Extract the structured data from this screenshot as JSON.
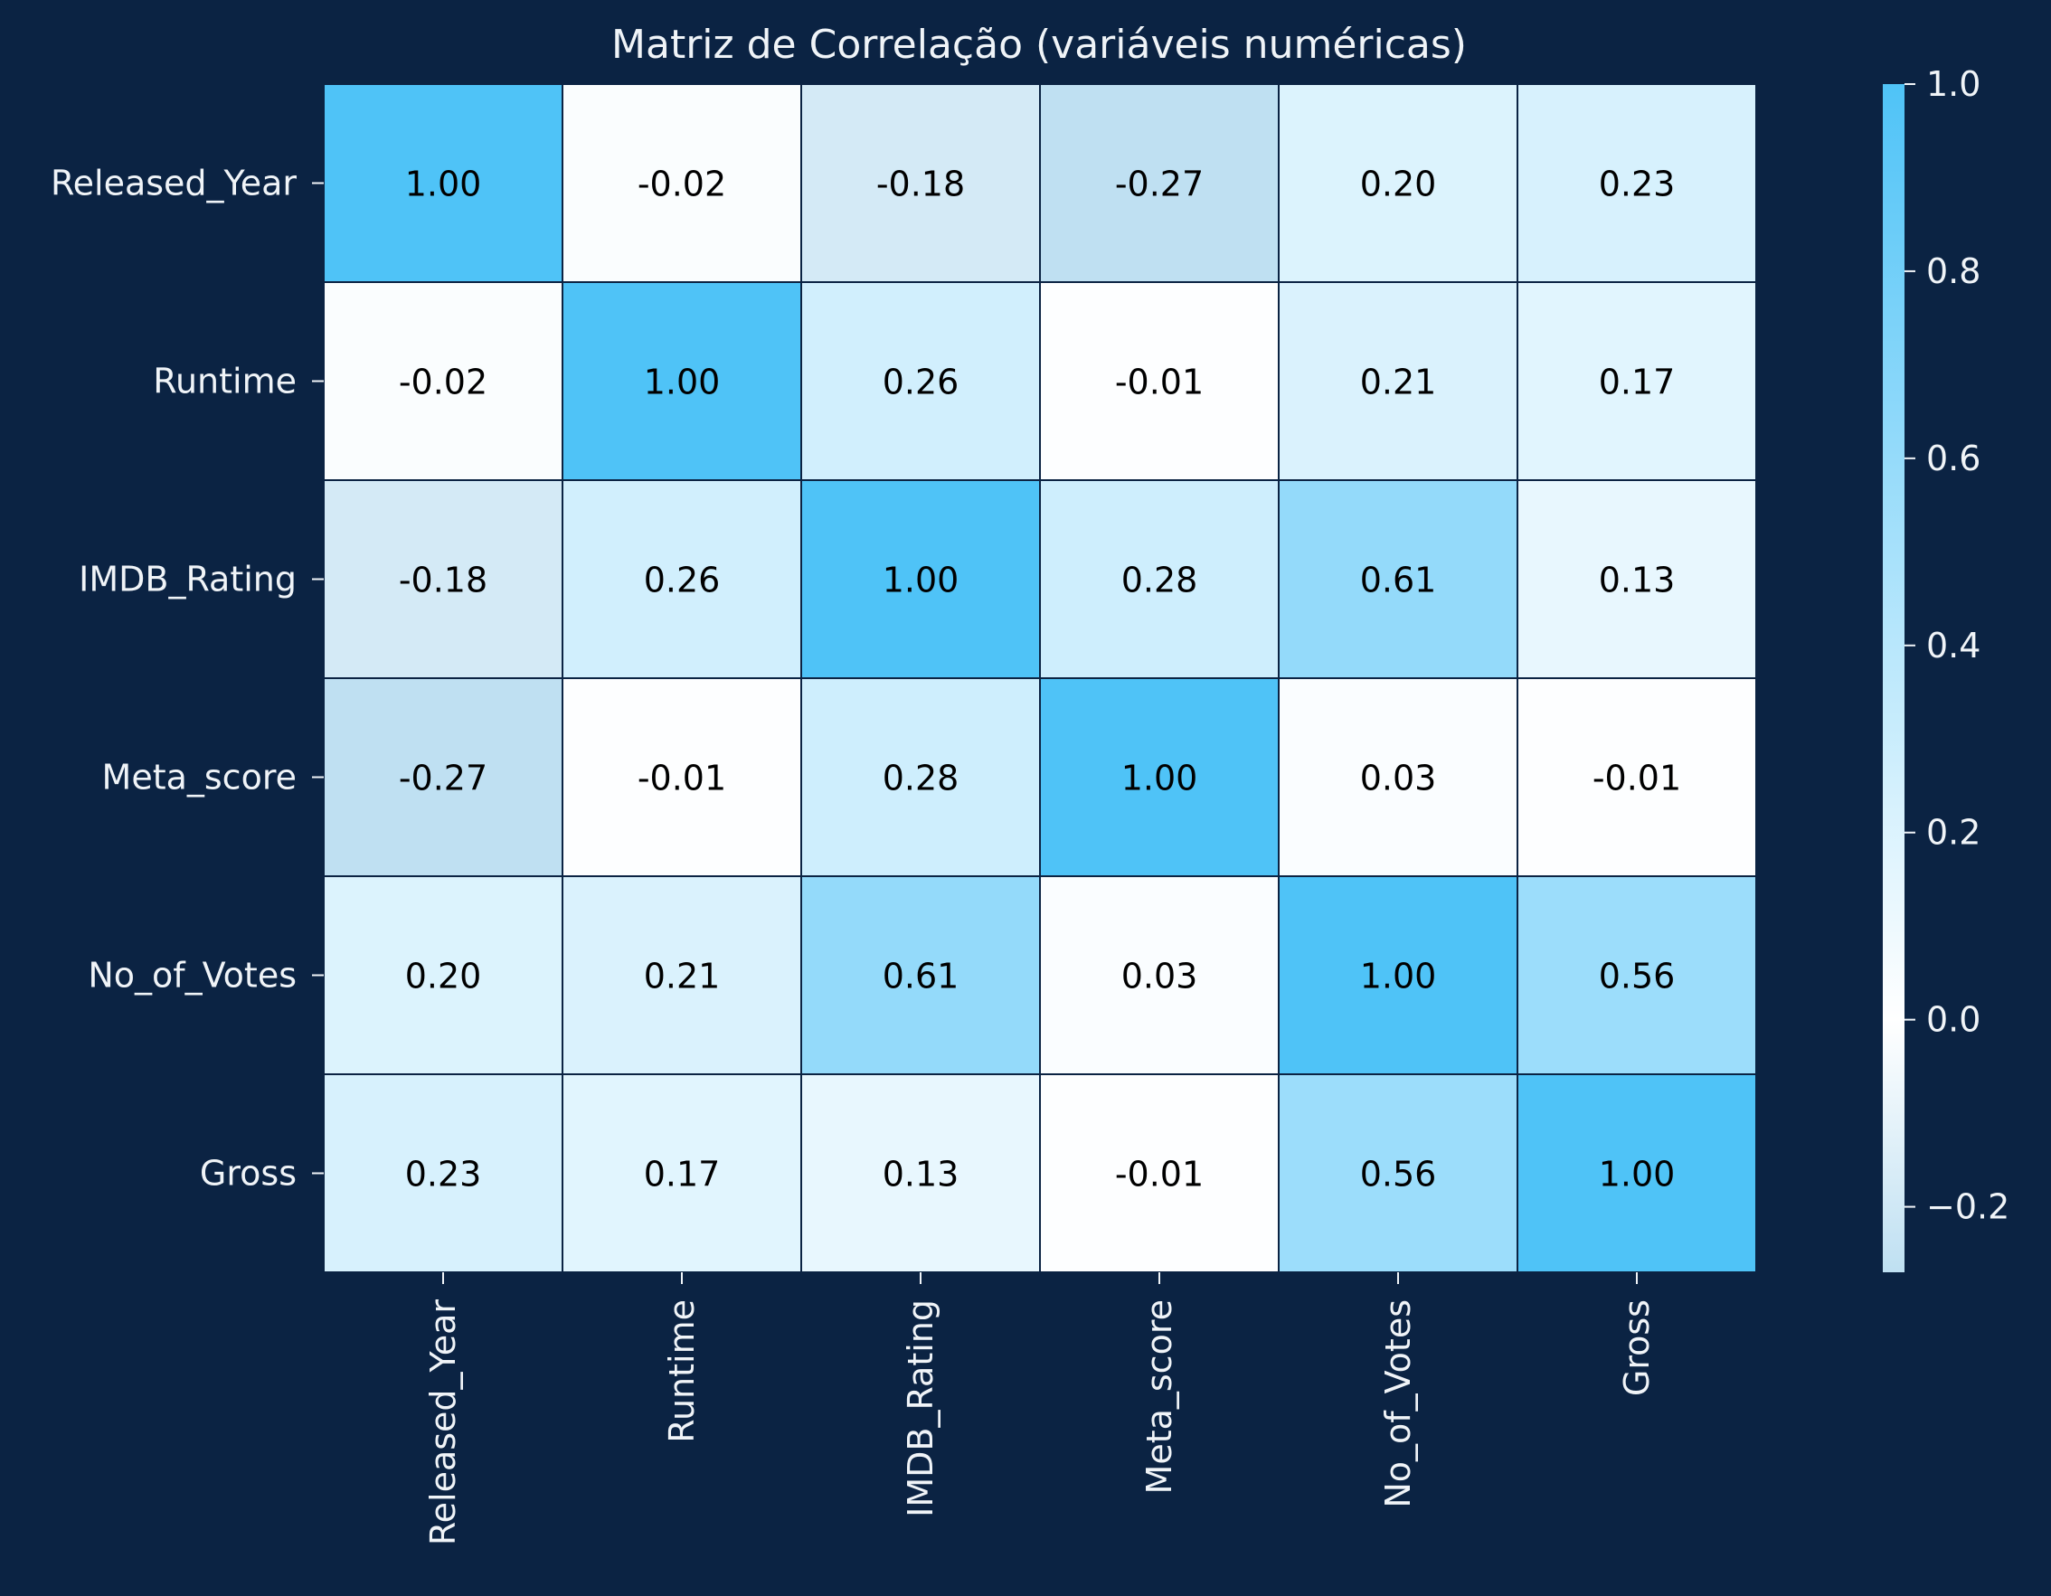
{
  "chart_data": {
    "type": "heatmap",
    "title": "Matriz de Correlação (variáveis numéricas)",
    "rows": [
      "Released_Year",
      "Runtime",
      "IMDB_Rating",
      "Meta_score",
      "No_of_Votes",
      "Gross"
    ],
    "columns": [
      "Released_Year",
      "Runtime",
      "IMDB_Rating",
      "Meta_score",
      "No_of_Votes",
      "Gross"
    ],
    "values": [
      [
        1.0,
        -0.02,
        -0.18,
        -0.27,
        0.2,
        0.23
      ],
      [
        -0.02,
        1.0,
        0.26,
        -0.01,
        0.21,
        0.17
      ],
      [
        -0.18,
        0.26,
        1.0,
        0.28,
        0.61,
        0.13
      ],
      [
        -0.27,
        -0.01,
        0.28,
        1.0,
        0.03,
        -0.01
      ],
      [
        0.2,
        0.21,
        0.61,
        0.03,
        1.0,
        0.56
      ],
      [
        0.23,
        0.17,
        0.13,
        -0.01,
        0.56,
        1.0
      ]
    ],
    "value_labels": [
      [
        "1.00",
        "-0.02",
        "-0.18",
        "-0.27",
        "0.20",
        "0.23"
      ],
      [
        "-0.02",
        "1.00",
        "0.26",
        "-0.01",
        "0.21",
        "0.17"
      ],
      [
        "-0.18",
        "0.26",
        "1.00",
        "0.28",
        "0.61",
        "0.13"
      ],
      [
        "-0.27",
        "-0.01",
        "0.28",
        "1.00",
        "0.03",
        "-0.01"
      ],
      [
        "0.20",
        "0.21",
        "0.61",
        "0.03",
        "1.00",
        "0.56"
      ],
      [
        "0.23",
        "0.17",
        "0.13",
        "-0.01",
        "0.56",
        "1.00"
      ]
    ],
    "colorbar": {
      "min": -0.27,
      "max": 1.0,
      "ticks": [
        1.0,
        0.8,
        0.6,
        0.4,
        0.2,
        0.0,
        -0.2
      ],
      "tick_labels": [
        "1.0",
        "0.8",
        "0.6",
        "0.4",
        "0.2",
        "0.0",
        "−0.2"
      ]
    },
    "colors": {
      "background": "#0b2343",
      "low": "#bfe0f2",
      "center": "#ffffff",
      "high": "#4fc3f7",
      "grid_line": "#0b2343",
      "text_light": "#f0f4f8",
      "cell_text": "#000000"
    }
  }
}
